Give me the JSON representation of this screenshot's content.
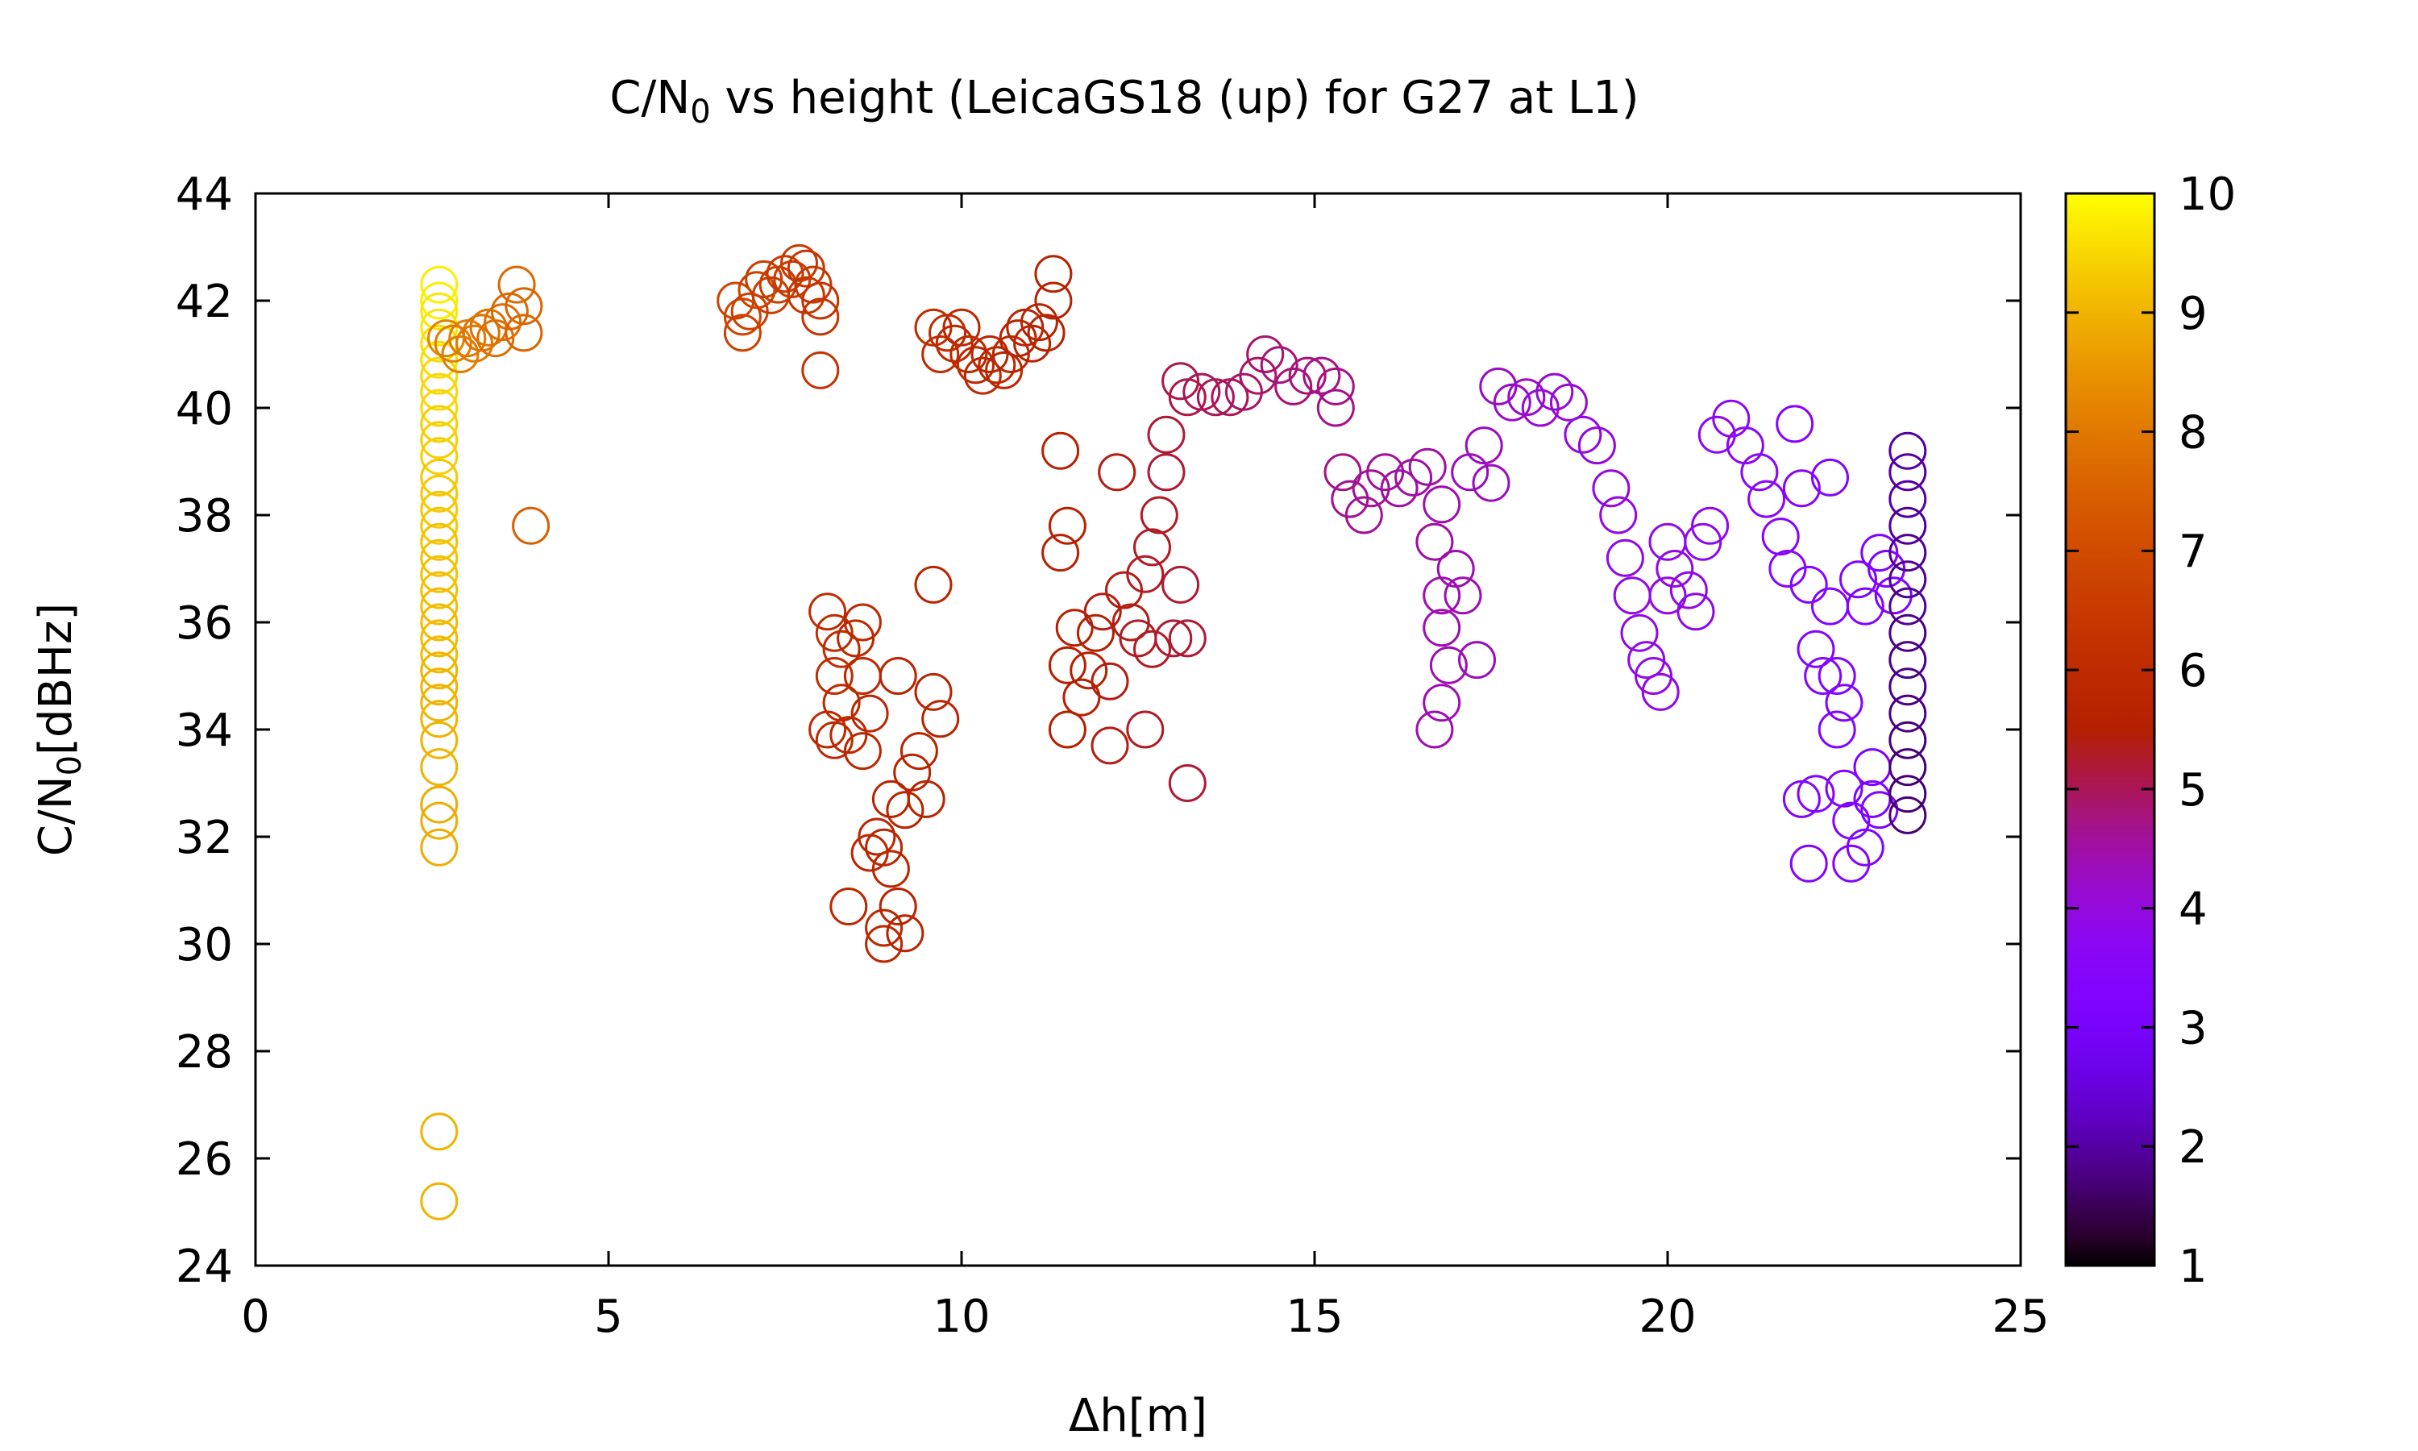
{
  "chart_data": {
    "type": "scatter",
    "title": "C/N0 vs height (LeicaGS18 (up) for G27 at L1)",
    "title_parts": {
      "main": "C/N",
      "sub": "0",
      "rest": " vs height (LeicaGS18 (up) for G27 at L1)"
    },
    "xlabel": "Δh[m]",
    "ylabel": "C/N0[dBHz]",
    "ylabel_parts": {
      "main": "C/N",
      "sub": "0",
      "rest": "[dBHz]"
    },
    "xlim": [
      0,
      25
    ],
    "ylim": [
      24,
      44
    ],
    "xticks": [
      0,
      5,
      10,
      15,
      20,
      25
    ],
    "yticks": [
      24,
      26,
      28,
      30,
      32,
      34,
      36,
      38,
      40,
      42,
      44
    ],
    "colorbar": {
      "min": 1,
      "max": 10,
      "ticks": [
        1,
        2,
        3,
        4,
        5,
        6,
        7,
        8,
        9,
        10
      ],
      "palette": "black-purple-red-orange-yellow"
    },
    "grid": false,
    "legend": "none",
    "marker": "open-circle",
    "points": [
      [
        2.6,
        42.3,
        9.8
      ],
      [
        2.6,
        42.0,
        9.8
      ],
      [
        2.6,
        41.8,
        9.7
      ],
      [
        2.6,
        41.5,
        9.7
      ],
      [
        2.6,
        41.2,
        9.6
      ],
      [
        2.6,
        40.9,
        9.6
      ],
      [
        2.6,
        40.6,
        9.5
      ],
      [
        2.6,
        40.3,
        9.5
      ],
      [
        2.6,
        40.0,
        9.5
      ],
      [
        2.6,
        39.7,
        9.4
      ],
      [
        2.6,
        39.4,
        9.4
      ],
      [
        2.6,
        39.1,
        9.4
      ],
      [
        2.6,
        38.7,
        9.3
      ],
      [
        2.6,
        38.4,
        9.3
      ],
      [
        2.6,
        38.1,
        9.3
      ],
      [
        2.6,
        37.8,
        9.3
      ],
      [
        2.6,
        37.5,
        9.2
      ],
      [
        2.6,
        37.2,
        9.2
      ],
      [
        2.6,
        36.9,
        9.2
      ],
      [
        2.6,
        36.6,
        9.2
      ],
      [
        2.6,
        36.3,
        9.1
      ],
      [
        2.6,
        36.0,
        9.1
      ],
      [
        2.6,
        35.7,
        9.1
      ],
      [
        2.6,
        35.4,
        9.1
      ],
      [
        2.6,
        35.1,
        9.0
      ],
      [
        2.6,
        34.8,
        9.0
      ],
      [
        2.6,
        34.5,
        9.0
      ],
      [
        2.6,
        34.2,
        9.0
      ],
      [
        2.6,
        33.8,
        9.0
      ],
      [
        2.6,
        33.3,
        9.0
      ],
      [
        2.6,
        32.6,
        8.9
      ],
      [
        2.6,
        32.3,
        8.9
      ],
      [
        2.6,
        31.8,
        8.9
      ],
      [
        2.6,
        26.5,
        9.0
      ],
      [
        2.6,
        25.2,
        9.0
      ],
      [
        2.7,
        41.3,
        8.2
      ],
      [
        2.8,
        41.2,
        8.1
      ],
      [
        2.9,
        41.0,
        8.1
      ],
      [
        3.0,
        41.3,
        8.0
      ],
      [
        3.1,
        41.2,
        8.0
      ],
      [
        3.2,
        41.4,
        7.9
      ],
      [
        3.3,
        41.5,
        7.9
      ],
      [
        3.4,
        41.3,
        7.8
      ],
      [
        3.5,
        41.6,
        7.8
      ],
      [
        3.6,
        41.8,
        7.7
      ],
      [
        3.7,
        42.3,
        7.7
      ],
      [
        3.8,
        41.9,
        7.6
      ],
      [
        3.8,
        41.4,
        7.6
      ],
      [
        3.9,
        37.8,
        7.5
      ],
      [
        6.8,
        42.0,
        6.8
      ],
      [
        6.9,
        41.7,
        6.8
      ],
      [
        6.9,
        41.4,
        6.7
      ],
      [
        7.0,
        41.8,
        6.7
      ],
      [
        7.1,
        42.2,
        6.7
      ],
      [
        7.2,
        42.4,
        6.6
      ],
      [
        7.3,
        42.1,
        6.6
      ],
      [
        7.4,
        42.3,
        6.6
      ],
      [
        7.5,
        42.5,
        6.5
      ],
      [
        7.6,
        42.4,
        6.5
      ],
      [
        7.7,
        42.7,
        6.5
      ],
      [
        7.8,
        42.6,
        6.4
      ],
      [
        7.8,
        42.1,
        6.4
      ],
      [
        7.9,
        42.3,
        6.4
      ],
      [
        8.0,
        42.0,
        6.3
      ],
      [
        8.0,
        41.7,
        6.3
      ],
      [
        8.0,
        40.7,
        6.3
      ],
      [
        8.1,
        36.2,
        6.0
      ],
      [
        8.2,
        35.8,
        6.0
      ],
      [
        8.3,
        35.5,
        6.0
      ],
      [
        8.2,
        35.0,
        6.0
      ],
      [
        8.3,
        34.5,
        5.9
      ],
      [
        8.1,
        34.0,
        5.9
      ],
      [
        8.2,
        33.8,
        5.9
      ],
      [
        8.4,
        33.9,
        5.9
      ],
      [
        8.5,
        35.7,
        5.9
      ],
      [
        8.6,
        36.0,
        5.9
      ],
      [
        8.6,
        35.0,
        5.9
      ],
      [
        8.7,
        34.3,
        5.8
      ],
      [
        8.6,
        33.6,
        5.8
      ],
      [
        8.4,
        30.7,
        5.8
      ],
      [
        8.7,
        31.7,
        5.8
      ],
      [
        8.8,
        32.0,
        5.8
      ],
      [
        8.9,
        31.8,
        5.8
      ],
      [
        8.9,
        30.3,
        5.8
      ],
      [
        8.9,
        30.0,
        5.8
      ],
      [
        9.0,
        31.4,
        5.8
      ],
      [
        9.0,
        32.7,
        5.7
      ],
      [
        9.1,
        35.0,
        5.7
      ],
      [
        9.2,
        32.5,
        5.7
      ],
      [
        9.1,
        30.7,
        5.7
      ],
      [
        9.2,
        30.2,
        5.7
      ],
      [
        9.3,
        33.2,
        5.7
      ],
      [
        9.4,
        33.6,
        5.7
      ],
      [
        9.5,
        32.7,
        5.7
      ],
      [
        9.6,
        34.7,
        5.7
      ],
      [
        9.7,
        34.2,
        5.7
      ],
      [
        9.6,
        36.7,
        5.7
      ],
      [
        9.6,
        41.5,
        6.0
      ],
      [
        9.7,
        41.0,
        6.0
      ],
      [
        9.8,
        41.4,
        6.0
      ],
      [
        9.9,
        41.2,
        5.9
      ],
      [
        10.0,
        41.5,
        5.9
      ],
      [
        10.1,
        41.0,
        5.9
      ],
      [
        10.2,
        40.8,
        5.9
      ],
      [
        10.3,
        40.6,
        5.8
      ],
      [
        10.4,
        41.0,
        5.8
      ],
      [
        10.5,
        40.8,
        5.8
      ],
      [
        10.6,
        40.7,
        5.8
      ],
      [
        10.7,
        41.0,
        5.8
      ],
      [
        10.8,
        41.3,
        5.7
      ],
      [
        10.9,
        41.5,
        5.7
      ],
      [
        11.0,
        41.2,
        5.7
      ],
      [
        11.1,
        41.6,
        5.7
      ],
      [
        11.2,
        41.4,
        5.6
      ],
      [
        11.3,
        42.0,
        5.6
      ],
      [
        11.3,
        42.5,
        5.6
      ],
      [
        11.4,
        39.2,
        5.6
      ],
      [
        11.5,
        37.8,
        5.6
      ],
      [
        11.4,
        37.3,
        5.6
      ],
      [
        11.6,
        35.9,
        5.5
      ],
      [
        11.5,
        35.2,
        5.5
      ],
      [
        11.7,
        34.6,
        5.5
      ],
      [
        11.5,
        34.0,
        5.5
      ],
      [
        11.8,
        35.1,
        5.5
      ],
      [
        11.9,
        35.8,
        5.5
      ],
      [
        12.0,
        36.2,
        5.4
      ],
      [
        12.1,
        34.9,
        5.4
      ],
      [
        12.1,
        33.7,
        5.4
      ],
      [
        12.2,
        38.8,
        5.4
      ],
      [
        12.3,
        36.6,
        5.4
      ],
      [
        12.4,
        36.0,
        5.4
      ],
      [
        12.5,
        35.7,
        5.3
      ],
      [
        12.6,
        36.9,
        5.3
      ],
      [
        12.7,
        37.4,
        5.3
      ],
      [
        12.7,
        35.5,
        5.3
      ],
      [
        12.8,
        38.0,
        5.3
      ],
      [
        12.9,
        38.8,
        5.2
      ],
      [
        12.9,
        39.5,
        5.2
      ],
      [
        13.0,
        35.7,
        5.2
      ],
      [
        13.1,
        36.7,
        5.2
      ],
      [
        13.2,
        35.7,
        5.2
      ],
      [
        12.6,
        34.0,
        5.3
      ],
      [
        13.2,
        33.0,
        5.2
      ],
      [
        13.1,
        40.5,
        5.1
      ],
      [
        13.2,
        40.2,
        5.1
      ],
      [
        13.4,
        40.3,
        5.0
      ],
      [
        13.6,
        40.2,
        5.0
      ],
      [
        13.8,
        40.2,
        5.0
      ],
      [
        14.0,
        40.3,
        4.9
      ],
      [
        14.2,
        40.6,
        4.9
      ],
      [
        14.3,
        41.0,
        4.9
      ],
      [
        14.5,
        40.8,
        4.8
      ],
      [
        14.7,
        40.4,
        4.8
      ],
      [
        14.9,
        40.6,
        4.8
      ],
      [
        15.1,
        40.6,
        4.7
      ],
      [
        15.3,
        40.4,
        4.7
      ],
      [
        15.3,
        40.0,
        4.7
      ],
      [
        15.4,
        38.8,
        4.7
      ],
      [
        15.5,
        38.3,
        4.6
      ],
      [
        15.7,
        38.0,
        4.6
      ],
      [
        15.8,
        38.5,
        4.6
      ],
      [
        16.0,
        38.8,
        4.6
      ],
      [
        16.2,
        38.5,
        4.5
      ],
      [
        16.4,
        38.7,
        4.5
      ],
      [
        16.6,
        38.9,
        4.5
      ],
      [
        16.7,
        37.5,
        4.5
      ],
      [
        16.8,
        38.2,
        4.4
      ],
      [
        16.8,
        36.5,
        4.4
      ],
      [
        16.8,
        35.9,
        4.4
      ],
      [
        16.9,
        35.2,
        4.4
      ],
      [
        16.8,
        34.5,
        4.4
      ],
      [
        16.7,
        34.0,
        4.4
      ],
      [
        17.0,
        37.0,
        4.4
      ],
      [
        17.1,
        36.5,
        4.4
      ],
      [
        17.3,
        35.3,
        4.3
      ],
      [
        17.2,
        38.8,
        4.3
      ],
      [
        17.4,
        39.3,
        4.3
      ],
      [
        17.5,
        38.6,
        4.3
      ],
      [
        17.6,
        40.4,
        4.2
      ],
      [
        17.8,
        40.1,
        4.2
      ],
      [
        18.0,
        40.2,
        4.2
      ],
      [
        18.2,
        40.0,
        4.1
      ],
      [
        18.4,
        40.3,
        4.1
      ],
      [
        18.6,
        40.1,
        4.1
      ],
      [
        18.8,
        39.5,
        4.0
      ],
      [
        19.0,
        39.3,
        4.0
      ],
      [
        19.2,
        38.5,
        4.0
      ],
      [
        19.3,
        38.0,
        3.9
      ],
      [
        19.4,
        37.2,
        3.9
      ],
      [
        19.5,
        36.5,
        3.9
      ],
      [
        19.6,
        35.8,
        3.9
      ],
      [
        19.7,
        35.3,
        3.9
      ],
      [
        19.8,
        35.0,
        3.9
      ],
      [
        19.9,
        34.7,
        3.9
      ],
      [
        20.0,
        36.5,
        3.9
      ],
      [
        20.0,
        37.5,
        3.9
      ],
      [
        20.1,
        37.0,
        3.9
      ],
      [
        20.3,
        36.6,
        3.9
      ],
      [
        20.4,
        36.2,
        3.8
      ],
      [
        20.5,
        37.5,
        3.8
      ],
      [
        20.6,
        37.8,
        3.8
      ],
      [
        20.7,
        39.5,
        3.7
      ],
      [
        20.9,
        39.8,
        3.7
      ],
      [
        21.1,
        39.3,
        3.6
      ],
      [
        21.3,
        38.8,
        3.6
      ],
      [
        21.4,
        38.3,
        3.6
      ],
      [
        21.6,
        37.6,
        3.5
      ],
      [
        21.7,
        37.0,
        3.5
      ],
      [
        21.8,
        39.7,
        3.5
      ],
      [
        21.9,
        38.5,
        3.5
      ],
      [
        22.0,
        36.7,
        3.4
      ],
      [
        21.9,
        32.7,
        3.4
      ],
      [
        22.1,
        35.5,
        3.4
      ],
      [
        22.2,
        35.0,
        3.4
      ],
      [
        22.1,
        32.8,
        3.4
      ],
      [
        22.0,
        31.5,
        3.4
      ],
      [
        22.3,
        38.7,
        3.4
      ],
      [
        22.3,
        36.3,
        3.4
      ],
      [
        22.4,
        35.0,
        3.3
      ],
      [
        22.5,
        34.5,
        3.3
      ],
      [
        22.4,
        34.0,
        3.3
      ],
      [
        22.5,
        32.9,
        3.3
      ],
      [
        22.6,
        32.3,
        3.3
      ],
      [
        22.7,
        36.8,
        3.3
      ],
      [
        22.8,
        36.3,
        3.3
      ],
      [
        22.6,
        31.5,
        3.3
      ],
      [
        22.8,
        31.8,
        3.3
      ],
      [
        22.9,
        33.3,
        3.2
      ],
      [
        22.9,
        32.7,
        3.2
      ],
      [
        23.0,
        37.3,
        3.2
      ],
      [
        23.1,
        37.0,
        3.2
      ],
      [
        23.2,
        36.5,
        3.2
      ],
      [
        23.0,
        32.5,
        3.2
      ],
      [
        23.4,
        39.2,
        2.0
      ],
      [
        23.4,
        38.8,
        2.0
      ],
      [
        23.4,
        38.3,
        2.0
      ],
      [
        23.4,
        37.8,
        1.9
      ],
      [
        23.4,
        37.3,
        1.9
      ],
      [
        23.4,
        36.8,
        1.9
      ],
      [
        23.4,
        36.3,
        1.9
      ],
      [
        23.4,
        35.8,
        1.8
      ],
      [
        23.4,
        35.3,
        1.8
      ],
      [
        23.4,
        34.8,
        1.8
      ],
      [
        23.4,
        34.3,
        1.8
      ],
      [
        23.4,
        33.8,
        1.7
      ],
      [
        23.4,
        33.3,
        1.7
      ],
      [
        23.4,
        32.8,
        1.7
      ],
      [
        23.4,
        32.4,
        1.7
      ]
    ]
  }
}
